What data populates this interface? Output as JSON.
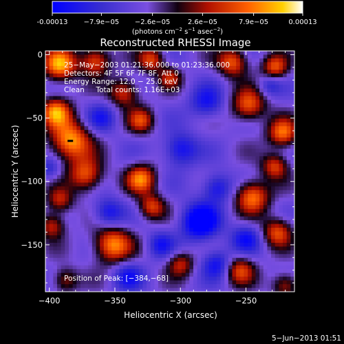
{
  "colorbar": {
    "ticks": [
      "-0.00013",
      "−7.9e−05",
      "−2.6e−05",
      "2.6e−05",
      "7.9e−05",
      "0.00013"
    ],
    "tick_values": [
      -0.00013,
      -7.9e-05,
      -2.6e-05,
      2.6e-05,
      7.9e-05,
      0.00013
    ],
    "range": [
      -0.00013,
      0.00013
    ],
    "units_prefix": "(photons cm",
    "units_sup1": "−2",
    "units_mid": " s",
    "units_sup2": "−1",
    "units_mid2": " asec",
    "units_sup3": "−2",
    "units_suffix": ")"
  },
  "chart_data": {
    "type": "heatmap",
    "title": "Reconstructed RHESSI Image",
    "xlabel": "Heliocentric X (arcsec)",
    "ylabel": "Heliocentric Y (arcsec)",
    "xlim": [
      -403,
      -213
    ],
    "ylim": [
      -187,
      3
    ],
    "xticks": [
      -400,
      -350,
      -300,
      -250
    ],
    "xtick_labels": [
      "−400",
      "−350",
      "−300",
      "−250"
    ],
    "yticks": [
      0,
      -50,
      -100,
      -150
    ],
    "ytick_labels": [
      "0",
      "−50",
      "−100",
      "−150"
    ],
    "annotations": [
      "25−May−2003 01:21:36.000 to 01:23:36.000",
      "Detectors: 4F 5F 6F 7F 8F, Att 0",
      "Energy Range: 12.0 − 25.0 keV",
      "Clean     Total counts: 1.16E+03"
    ],
    "peak_label": "Position of Peak: [−384,−68]",
    "peak": [
      -384,
      -68
    ],
    "blobs": [
      {
        "x": -392,
        "y": -8,
        "v": 1.0,
        "r": 9
      },
      {
        "x": -365,
        "y": -5,
        "v": 0.8,
        "r": 8
      },
      {
        "x": -322,
        "y": -4,
        "v": 0.7,
        "r": 7
      },
      {
        "x": -260,
        "y": -6,
        "v": 0.8,
        "r": 8
      },
      {
        "x": -228,
        "y": -10,
        "v": 0.75,
        "r": 7
      },
      {
        "x": -384,
        "y": -68,
        "v": 1.0,
        "r": 11
      },
      {
        "x": -395,
        "y": -45,
        "v": 0.9,
        "r": 8
      },
      {
        "x": -343,
        "y": -30,
        "v": 0.7,
        "r": 8
      },
      {
        "x": -330,
        "y": -52,
        "v": 0.65,
        "r": 7
      },
      {
        "x": -308,
        "y": -18,
        "v": 0.55,
        "r": 6
      },
      {
        "x": -372,
        "y": -95,
        "v": 0.8,
        "r": 9
      },
      {
        "x": -330,
        "y": -98,
        "v": 0.85,
        "r": 8
      },
      {
        "x": -322,
        "y": -120,
        "v": 0.7,
        "r": 7
      },
      {
        "x": -248,
        "y": -40,
        "v": 0.8,
        "r": 9
      },
      {
        "x": -222,
        "y": -62,
        "v": 0.85,
        "r": 8
      },
      {
        "x": -228,
        "y": -88,
        "v": 0.7,
        "r": 7
      },
      {
        "x": -245,
        "y": -112,
        "v": 0.9,
        "r": 9
      },
      {
        "x": -226,
        "y": -140,
        "v": 0.75,
        "r": 8
      },
      {
        "x": -392,
        "y": -115,
        "v": 0.6,
        "r": 7
      },
      {
        "x": -398,
        "y": -135,
        "v": 0.65,
        "r": 7
      },
      {
        "x": -352,
        "y": -150,
        "v": 0.95,
        "r": 10
      },
      {
        "x": -300,
        "y": -165,
        "v": 0.6,
        "r": 7
      },
      {
        "x": -255,
        "y": -170,
        "v": 0.7,
        "r": 8
      },
      {
        "x": -388,
        "y": -178,
        "v": 0.55,
        "r": 7
      },
      {
        "x": -220,
        "y": -182,
        "v": 0.6,
        "r": 7
      },
      {
        "x": -280,
        "y": -38,
        "v": -0.55,
        "r": 9
      },
      {
        "x": -300,
        "y": -75,
        "v": -0.65,
        "r": 9
      },
      {
        "x": -285,
        "y": -132,
        "v": -0.95,
        "r": 10
      },
      {
        "x": -272,
        "y": -105,
        "v": -0.6,
        "r": 8
      },
      {
        "x": -355,
        "y": -125,
        "v": -0.6,
        "r": 8
      },
      {
        "x": -360,
        "y": -50,
        "v": -0.45,
        "r": 8
      },
      {
        "x": -250,
        "y": -145,
        "v": -0.55,
        "r": 8
      },
      {
        "x": -272,
        "y": -165,
        "v": -0.6,
        "r": 8
      },
      {
        "x": -340,
        "y": -175,
        "v": -0.5,
        "r": 8
      },
      {
        "x": -400,
        "y": -90,
        "v": -0.4,
        "r": 6
      },
      {
        "x": -315,
        "y": -150,
        "v": -0.5,
        "r": 7
      },
      {
        "x": -232,
        "y": -24,
        "v": -0.4,
        "r": 6
      }
    ]
  },
  "footer": {
    "date": "5−Jun−2013 01:51"
  }
}
